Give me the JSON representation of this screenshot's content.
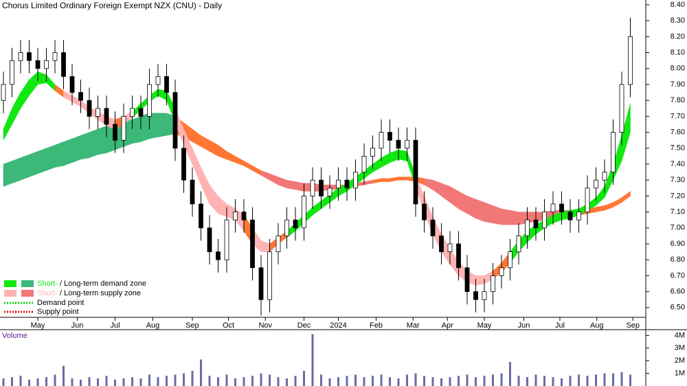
{
  "chart_data": {
    "type": "candlestick",
    "title": "Chorus Limited Ordinary Foreign Exempt NZX (CNU) - Daily",
    "xlim": [
      -0.4,
      74.8
    ],
    "xticks": [
      {
        "value": 4,
        "label": "May"
      },
      {
        "value": 8.6,
        "label": "Jun"
      },
      {
        "value": 13,
        "label": "Jul"
      },
      {
        "value": 17.4,
        "label": "Aug"
      },
      {
        "value": 22,
        "label": "Sep"
      },
      {
        "value": 26.2,
        "label": "Oct"
      },
      {
        "value": 30.5,
        "label": "Nov"
      },
      {
        "value": 35,
        "label": "Dec"
      },
      {
        "value": 39,
        "label": "2024"
      },
      {
        "value": 43.4,
        "label": "Feb"
      },
      {
        "value": 47.7,
        "label": "Mar"
      },
      {
        "value": 51.7,
        "label": "Apr"
      },
      {
        "value": 56,
        "label": "May"
      },
      {
        "value": 60.6,
        "label": "Jun"
      },
      {
        "value": 64.8,
        "label": "Jul"
      },
      {
        "value": 69.1,
        "label": "Aug"
      },
      {
        "value": 73.3,
        "label": "Sep"
      }
    ],
    "ylim": [
      6.37,
      8.43
    ],
    "yticks": [
      {
        "value": 6.5,
        "label": "6.50"
      },
      {
        "value": 6.6,
        "label": "6.60"
      },
      {
        "value": 6.7,
        "label": "6.70"
      },
      {
        "value": 6.8,
        "label": "6.80"
      },
      {
        "value": 6.9,
        "label": "6.90"
      },
      {
        "value": 7.0,
        "label": "7.00"
      },
      {
        "value": 7.1,
        "label": "7.10"
      },
      {
        "value": 7.2,
        "label": "7.20"
      },
      {
        "value": 7.3,
        "label": "7.30"
      },
      {
        "value": 7.4,
        "label": "7.40"
      },
      {
        "value": 7.5,
        "label": "7.50"
      },
      {
        "value": 7.6,
        "label": "7.60"
      },
      {
        "value": 7.7,
        "label": "7.70"
      },
      {
        "value": 7.8,
        "label": "7.80"
      },
      {
        "value": 7.9,
        "label": "7.90"
      },
      {
        "value": 8.0,
        "label": "8.00"
      },
      {
        "value": 8.1,
        "label": "8.10"
      },
      {
        "value": 8.2,
        "label": "8.20"
      },
      {
        "value": 8.3,
        "label": "8.30"
      },
      {
        "value": 8.4,
        "label": "8.40"
      }
    ],
    "open": [
      7.8,
      7.9,
      8.05,
      8.1,
      8.05,
      8.0,
      8.05,
      8.1,
      7.95,
      7.85,
      7.8,
      7.7,
      7.75,
      7.65,
      7.55,
      7.7,
      7.75,
      7.7,
      7.9,
      7.95,
      7.85,
      7.5,
      7.3,
      7.15,
      7.0,
      6.85,
      6.8,
      7.05,
      7.1,
      7.05,
      6.75,
      6.55,
      6.85,
      6.95,
      7.05,
      7.0,
      7.2,
      7.3,
      7.2,
      7.25,
      7.3,
      7.25,
      7.35,
      7.45,
      7.5,
      7.6,
      7.55,
      7.5,
      7.55,
      7.15,
      7.05,
      6.95,
      6.85,
      6.9,
      6.75,
      6.6,
      6.55,
      6.6,
      6.7,
      6.75,
      6.85,
      6.95,
      7.05,
      7.0,
      7.1,
      7.15,
      7.1,
      7.05,
      7.1,
      7.25,
      7.3,
      7.35,
      7.6,
      7.9
    ],
    "high": [
      7.98,
      8.13,
      8.18,
      8.18,
      8.13,
      8.13,
      8.18,
      8.18,
      8.03,
      7.93,
      7.88,
      7.83,
      7.83,
      7.73,
      7.78,
      7.83,
      7.83,
      8.0,
      8.03,
      8.03,
      7.93,
      7.58,
      7.38,
      7.23,
      7.08,
      6.93,
      7.13,
      7.18,
      7.18,
      7.13,
      6.83,
      6.93,
      7.03,
      7.13,
      7.13,
      7.28,
      7.38,
      7.38,
      7.33,
      7.38,
      7.38,
      7.43,
      7.53,
      7.58,
      7.68,
      7.68,
      7.63,
      7.63,
      7.63,
      7.23,
      7.13,
      7.03,
      6.98,
      6.98,
      6.83,
      6.68,
      6.68,
      6.78,
      6.83,
      6.93,
      7.03,
      7.13,
      7.13,
      7.18,
      7.23,
      7.23,
      7.18,
      7.18,
      7.33,
      7.38,
      7.43,
      7.68,
      7.98,
      8.32
    ],
    "low": [
      7.72,
      7.82,
      7.97,
      7.97,
      7.92,
      7.92,
      7.97,
      7.87,
      7.77,
      7.72,
      7.62,
      7.62,
      7.57,
      7.47,
      7.47,
      7.62,
      7.62,
      7.62,
      7.82,
      7.77,
      7.42,
      7.22,
      7.07,
      6.92,
      6.77,
      6.72,
      6.72,
      6.97,
      6.97,
      6.67,
      6.45,
      6.47,
      6.77,
      6.87,
      6.92,
      6.92,
      7.12,
      7.12,
      7.12,
      7.17,
      7.17,
      7.17,
      7.27,
      7.37,
      7.42,
      7.47,
      7.42,
      7.42,
      7.07,
      6.97,
      6.87,
      6.77,
      6.77,
      6.67,
      6.52,
      6.47,
      6.47,
      6.52,
      6.62,
      6.67,
      6.77,
      6.87,
      6.92,
      6.92,
      7.02,
      7.02,
      6.97,
      6.97,
      7.02,
      7.17,
      7.22,
      7.27,
      7.52,
      7.82
    ],
    "close": [
      7.9,
      8.05,
      8.1,
      8.05,
      8.0,
      8.05,
      8.1,
      7.95,
      7.85,
      7.8,
      7.7,
      7.75,
      7.65,
      7.55,
      7.7,
      7.75,
      7.7,
      7.9,
      7.95,
      7.85,
      7.5,
      7.3,
      7.15,
      7.0,
      6.85,
      6.8,
      7.05,
      7.1,
      7.05,
      6.75,
      6.55,
      6.85,
      6.95,
      7.05,
      7.0,
      7.2,
      7.3,
      7.2,
      7.25,
      7.3,
      7.25,
      7.35,
      7.45,
      7.5,
      7.6,
      7.55,
      7.5,
      7.55,
      7.15,
      7.05,
      6.95,
      6.85,
      6.9,
      6.75,
      6.6,
      6.55,
      6.6,
      6.7,
      6.75,
      6.85,
      6.95,
      7.05,
      7.0,
      7.1,
      7.15,
      7.1,
      7.05,
      7.1,
      7.25,
      7.3,
      7.35,
      7.6,
      7.9,
      8.2
    ],
    "bands": [
      {
        "upper": [
          7.4,
          7.42,
          7.44,
          7.46,
          7.48,
          7.5,
          7.52,
          7.54,
          7.56,
          7.58,
          7.6,
          7.62,
          7.64,
          7.66,
          7.67,
          7.68,
          7.7,
          7.72,
          7.72,
          7.72,
          7.7,
          7.66,
          7.62,
          7.58,
          7.55,
          7.52,
          7.48,
          7.45,
          7.42,
          7.39,
          7.36,
          7.34,
          7.32,
          7.3,
          7.29,
          7.28,
          7.28,
          7.27,
          7.27,
          7.27,
          7.27,
          7.28,
          7.29,
          7.3,
          7.31,
          7.31,
          7.32,
          7.32,
          7.32,
          7.31,
          7.3,
          7.28,
          7.26,
          7.23,
          7.2,
          7.18,
          7.16,
          7.14,
          7.12,
          7.11,
          7.1,
          7.1,
          7.1,
          7.1,
          7.11,
          7.11,
          7.11,
          7.12,
          7.12,
          7.13,
          7.14,
          7.16,
          7.19,
          7.23
        ],
        "lower": [
          7.26,
          7.28,
          7.3,
          7.32,
          7.34,
          7.36,
          7.38,
          7.39,
          7.41,
          7.43,
          7.44,
          7.46,
          7.47,
          7.49,
          7.51,
          7.53,
          7.54,
          7.56,
          7.57,
          7.58,
          7.59,
          7.57,
          7.54,
          7.51,
          7.48,
          7.45,
          7.43,
          7.41,
          7.39,
          7.36,
          7.33,
          7.3,
          7.27,
          7.25,
          7.24,
          7.23,
          7.23,
          7.23,
          7.24,
          7.24,
          7.25,
          7.26,
          7.27,
          7.28,
          7.29,
          7.29,
          7.3,
          7.3,
          7.29,
          7.27,
          7.24,
          7.2,
          7.16,
          7.12,
          7.09,
          7.06,
          7.04,
          7.03,
          7.02,
          7.02,
          7.02,
          7.03,
          7.04,
          7.05,
          7.06,
          7.07,
          7.07,
          7.08,
          7.09,
          7.1,
          7.11,
          7.13,
          7.16,
          7.2
        ],
        "colors": [
          "#3cb878",
          "#3cb878",
          "#3cb878",
          "#3cb878",
          "#3cb878",
          "#3cb878",
          "#3cb878",
          "#3cb878",
          "#3cb878",
          "#3cb878",
          "#3cb878",
          "#3cb878",
          "#3cb878",
          "#3cb878",
          "#3cb878",
          "#3cb878",
          "#3cb878",
          "#3cb878",
          "#3cb878",
          "#3cb878",
          "#ff7733",
          "#ff7733",
          "#ff7733",
          "#ff7733",
          "#ff7733",
          "#ff7733",
          "#ff7733",
          "#ff7733",
          "#ff7733",
          "#ff7733",
          "#f27777",
          "#f27777",
          "#f27777",
          "#f27777",
          "#f27777",
          "#f27777",
          "#f27777",
          "#f27777",
          "#f27777",
          "#f27777",
          "#f27777",
          "#f27777",
          "#f27777",
          "#ff7733",
          "#ff7733",
          "#ff7733",
          "#ff7733",
          "#ff7733",
          "#ff7733",
          "#f27777",
          "#f27777",
          "#f27777",
          "#f27777",
          "#f27777",
          "#f27777",
          "#f27777",
          "#f27777",
          "#f27777",
          "#f27777",
          "#f27777",
          "#f27777",
          "#f27777",
          "#f27777",
          "#f27777",
          "#f27777",
          "#f27777",
          "#f27777",
          "#ff7733",
          "#ff7733",
          "#ff7733",
          "#ff7733",
          "#ff7733",
          "#ff7733",
          "#3cb878"
        ]
      },
      {
        "upper": [
          7.62,
          7.75,
          7.85,
          7.93,
          7.98,
          7.96,
          7.9,
          7.86,
          7.83,
          7.8,
          7.76,
          7.73,
          7.7,
          7.68,
          7.7,
          7.73,
          7.78,
          7.83,
          7.87,
          7.86,
          7.75,
          7.62,
          7.5,
          7.38,
          7.27,
          7.2,
          7.15,
          7.12,
          7.08,
          7.0,
          6.92,
          6.9,
          6.94,
          6.98,
          7.03,
          7.08,
          7.13,
          7.17,
          7.21,
          7.25,
          7.28,
          7.32,
          7.36,
          7.4,
          7.44,
          7.47,
          7.49,
          7.48,
          7.33,
          7.2,
          7.07,
          6.96,
          6.87,
          6.79,
          6.73,
          6.7,
          6.7,
          6.73,
          6.78,
          6.85,
          6.92,
          6.98,
          7.02,
          7.05,
          7.08,
          7.1,
          7.11,
          7.12,
          7.15,
          7.19,
          7.26,
          7.4,
          7.58,
          7.78
        ],
        "lower": [
          7.55,
          7.65,
          7.75,
          7.83,
          7.9,
          7.91,
          7.86,
          7.82,
          7.79,
          7.76,
          7.72,
          7.68,
          7.64,
          7.62,
          7.65,
          7.69,
          7.74,
          7.79,
          7.83,
          7.8,
          7.66,
          7.52,
          7.4,
          7.27,
          7.15,
          7.09,
          7.07,
          7.05,
          6.98,
          6.9,
          6.85,
          6.85,
          6.9,
          6.94,
          6.98,
          7.03,
          7.08,
          7.12,
          7.16,
          7.2,
          7.23,
          7.27,
          7.31,
          7.35,
          7.38,
          7.41,
          7.43,
          7.42,
          7.26,
          7.1,
          6.96,
          6.85,
          6.77,
          6.7,
          6.66,
          6.64,
          6.65,
          6.68,
          6.72,
          6.78,
          6.85,
          6.91,
          6.96,
          7.0,
          7.03,
          7.05,
          7.06,
          7.08,
          7.11,
          7.14,
          7.19,
          7.3,
          7.42,
          7.6
        ],
        "colors": [
          "#11e811",
          "#11e811",
          "#11e811",
          "#11e811",
          "#11e811",
          "#11e811",
          "#ff7733",
          "#ffb3b3",
          "#ffb3b3",
          "#ffb3b3",
          "#ffb3b3",
          "#ffb3b3",
          "#ffb3b3",
          "#ff7733",
          "#ffb3b3",
          "#11e811",
          "#11e811",
          "#11e811",
          "#11e811",
          "#11e811",
          "#ffb3b3",
          "#ffb3b3",
          "#ffb3b3",
          "#ffb3b3",
          "#ffb3b3",
          "#ffb3b3",
          "#ffb3b3",
          "#ffb3b3",
          "#ff7733",
          "#ffb3b3",
          "#ffb3b3",
          "#ff7733",
          "#ff7733",
          "#11e811",
          "#11e811",
          "#11e811",
          "#11e811",
          "#11e811",
          "#11e811",
          "#11e811",
          "#11e811",
          "#11e811",
          "#11e811",
          "#11e811",
          "#11e811",
          "#11e811",
          "#11e811",
          "#11e811",
          "#ffb3b3",
          "#ffb3b3",
          "#ffb3b3",
          "#ffb3b3",
          "#ffb3b3",
          "#ffb3b3",
          "#ffb3b3",
          "#ffb3b3",
          "#ffb3b3",
          "#ff7733",
          "#ff7733",
          "#11e811",
          "#11e811",
          "#11e811",
          "#11e811",
          "#11e811",
          "#11e811",
          "#11e811",
          "#11e811",
          "#11e811",
          "#11e811",
          "#11e811",
          "#11e811",
          "#11e811",
          "#11e811",
          "#11e811"
        ]
      }
    ],
    "legend": {
      "zones": [
        {
          "short": "Short-",
          "rest": "/ Long-term demand zone",
          "short_color": "#11e811",
          "long_color": "#3cb878"
        },
        {
          "short": "Short-",
          "rest": "/ Long-term supply zone",
          "short_color": "#ffb3b3",
          "long_color": "#f27777"
        }
      ],
      "points": [
        {
          "label": "Demand point",
          "color": "#11cc11"
        },
        {
          "label": "Supply point",
          "color": "#dd1111"
        }
      ]
    },
    "volume": {
      "title": "Volume",
      "color": "#6a6aa8",
      "values": [
        0.6,
        0.7,
        0.8,
        0.5,
        0.6,
        0.7,
        0.9,
        1.6,
        0.6,
        0.5,
        0.7,
        0.6,
        0.8,
        0.5,
        0.6,
        0.7,
        0.6,
        0.9,
        0.7,
        0.8,
        0.9,
        1.0,
        1.2,
        2.1,
        0.8,
        0.7,
        0.9,
        0.6,
        0.7,
        0.8,
        1.0,
        0.9,
        0.7,
        0.6,
        0.8,
        1.2,
        4.1,
        0.9,
        0.6,
        0.7,
        0.8,
        0.9,
        0.7,
        0.8,
        0.9,
        0.7,
        0.6,
        0.9,
        1.0,
        0.8,
        0.7,
        0.6,
        0.7,
        0.8,
        0.9,
        0.7,
        0.8,
        0.9,
        1.0,
        1.9,
        0.8,
        0.7,
        0.9,
        0.8,
        0.7,
        0.6,
        0.8,
        0.9,
        0.8,
        0.9,
        1.0,
        1.0,
        1.1,
        0.9
      ],
      "ylim": [
        0,
        4.4
      ],
      "yticks": [
        {
          "value": 1,
          "label": "1M"
        },
        {
          "value": 2,
          "label": "2M"
        },
        {
          "value": 3,
          "label": "3M"
        },
        {
          "value": 4,
          "label": "4M"
        }
      ]
    }
  }
}
